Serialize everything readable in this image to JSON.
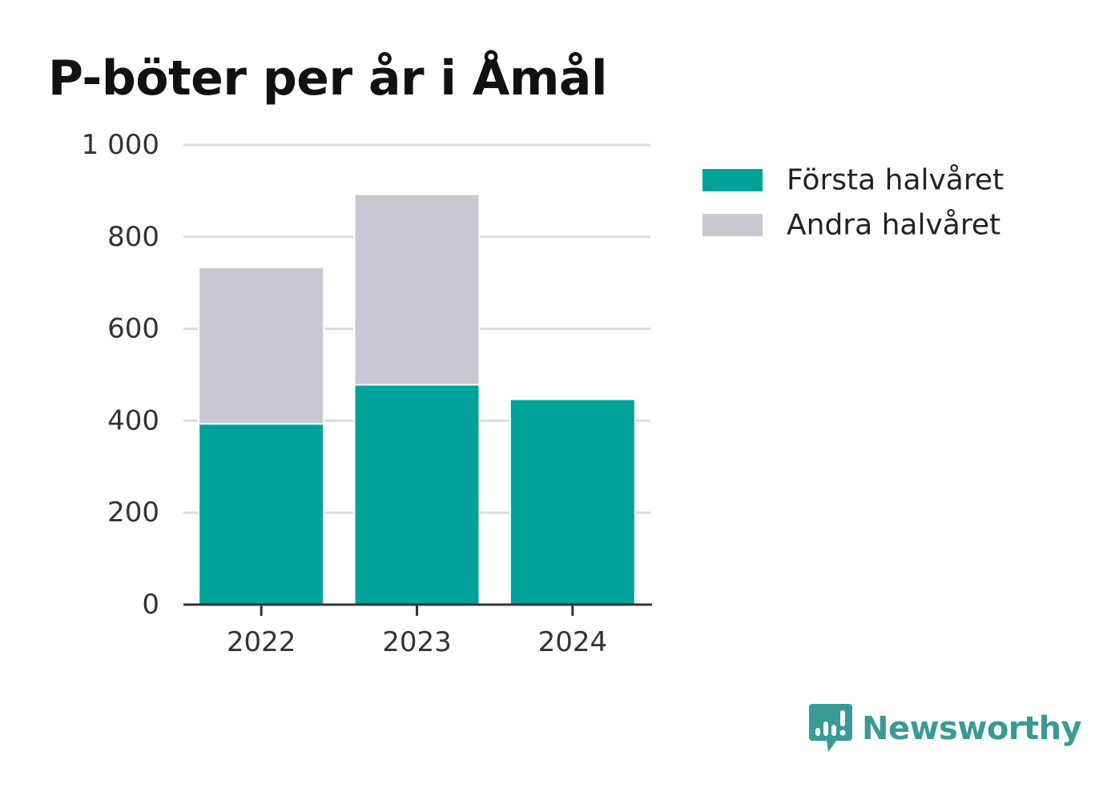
{
  "chart_data": {
    "type": "bar",
    "stacked": true,
    "title": "P-böter per år i Åmål",
    "categories": [
      "2022",
      "2023",
      "2024"
    ],
    "series": [
      {
        "name": "Första halvåret",
        "values": [
          395,
          480,
          445
        ],
        "color": "#00a39a"
      },
      {
        "name": "Andra halvåret",
        "values": [
          337,
          411,
          null
        ],
        "color": "#c8c8d2"
      }
    ],
    "ylim": [
      0,
      1000
    ],
    "yticks": [
      0,
      200,
      400,
      600,
      800,
      1000
    ],
    "ytick_labels": [
      "0",
      "200",
      "400",
      "600",
      "800",
      "1 000"
    ],
    "grid": true,
    "legend_position": "right"
  },
  "brand": {
    "name": "Newsworthy",
    "icon": "newsworthy-logo-icon",
    "color": "#3a9a94"
  }
}
